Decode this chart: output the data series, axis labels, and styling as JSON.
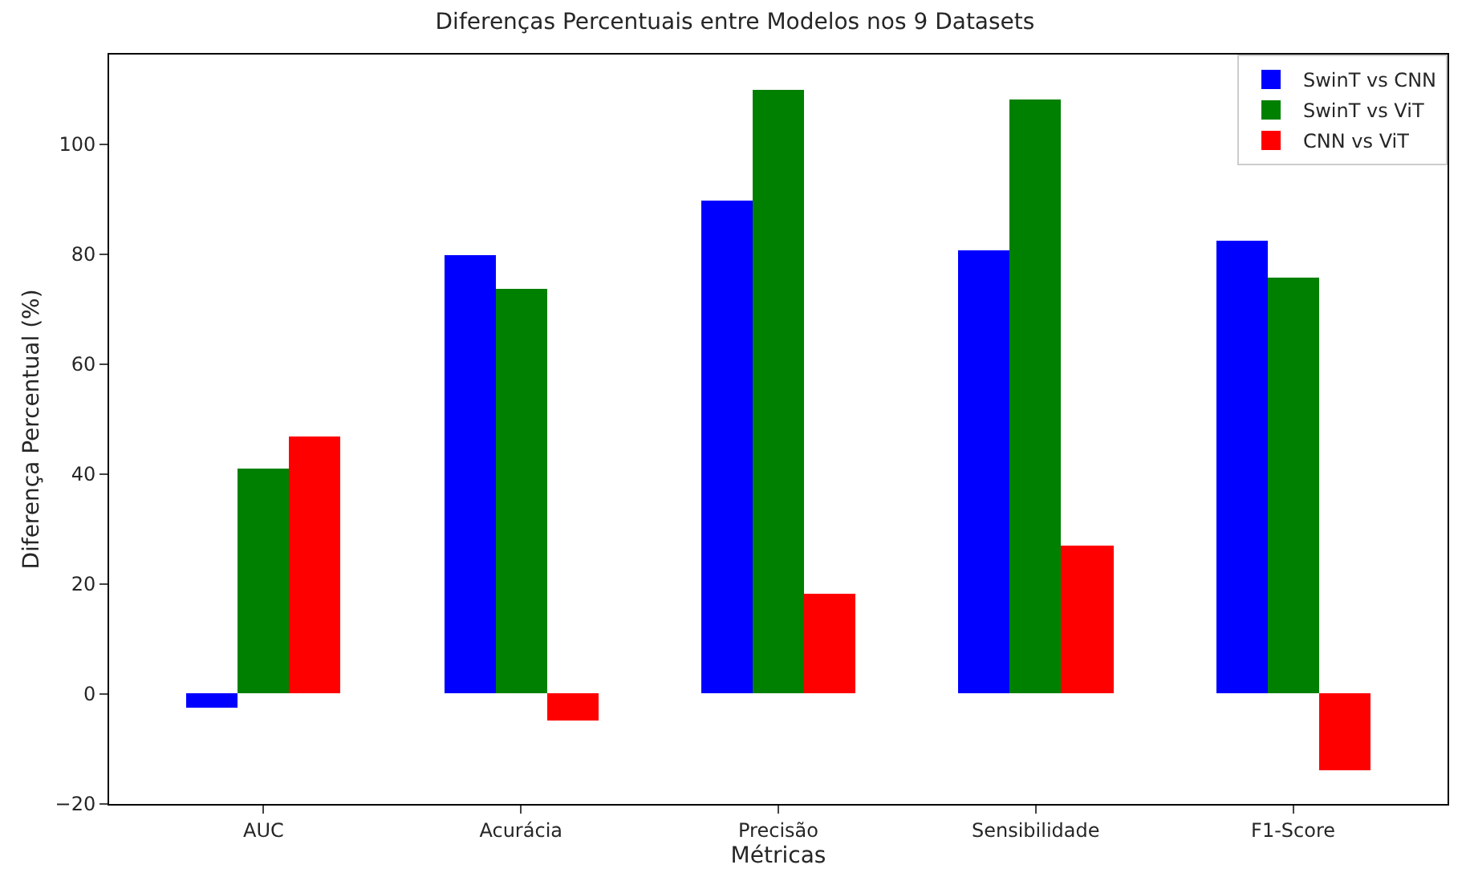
{
  "chart_data": {
    "type": "bar",
    "title": "Diferenças Percentuais entre Modelos nos 9 Datasets",
    "xlabel": "Métricas",
    "ylabel": "Diferença Percentual (%)",
    "categories": [
      "AUC",
      "Acurácia",
      "Precisão",
      "Sensibilidade",
      "F1-Score"
    ],
    "series": [
      {
        "name": "SwinT vs CNN",
        "color": "#0000ff",
        "values": [
          -2.6,
          79.7,
          89.7,
          80.6,
          82.3
        ]
      },
      {
        "name": "SwinT vs ViT",
        "color": "#008000",
        "values": [
          41.1,
          73.7,
          110,
          108,
          75.7
        ]
      },
      {
        "name": "CNN vs ViT",
        "color": "#ff0000",
        "values": [
          46.9,
          -4.9,
          18.3,
          27.1,
          -14
        ]
      }
    ],
    "ylim": [
      -20,
      116.3
    ],
    "yticks": [
      -20,
      0,
      20,
      40,
      60,
      80,
      100
    ],
    "legend": "top right"
  }
}
